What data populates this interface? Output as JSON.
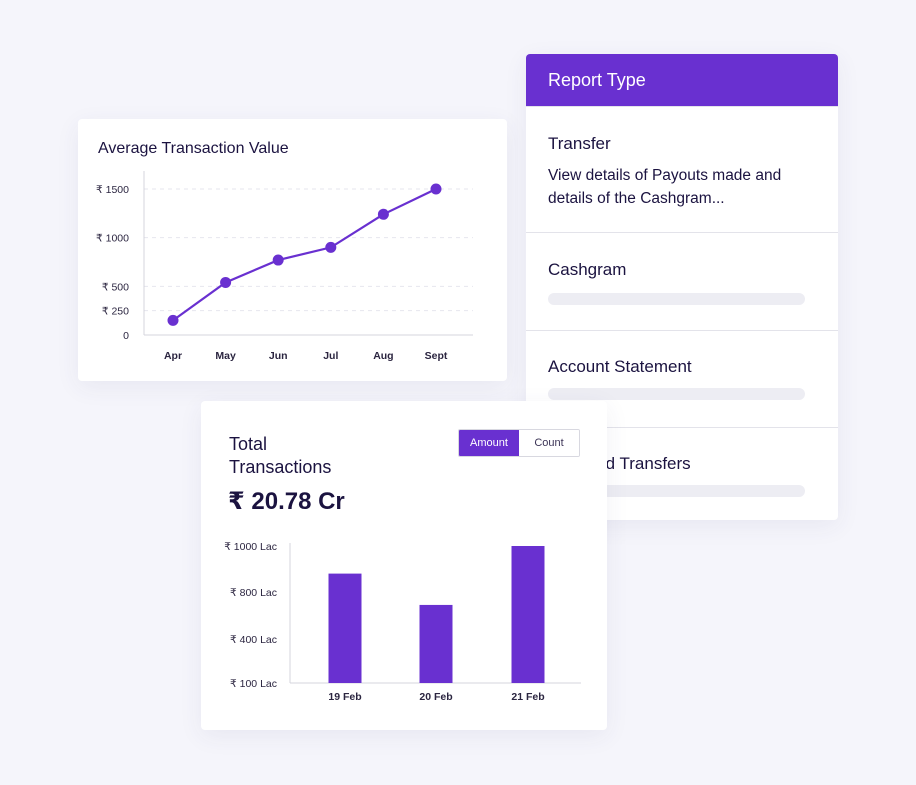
{
  "report_panel": {
    "header": "Report Type",
    "items": [
      {
        "title": "Transfer",
        "description": "View details of Payouts made and details of the Cashgram..."
      },
      {
        "title": "Cashgram"
      },
      {
        "title": "Account Statement"
      },
      {
        "title": "Rejected Transfers"
      }
    ]
  },
  "avg_chart": {
    "title": "Average Transaction Value"
  },
  "total_card": {
    "title": "Total Transactions",
    "amount": "₹ 20.78 Cr",
    "toggle": {
      "amount_label": "Amount",
      "count_label": "Count",
      "selected": "Amount"
    }
  },
  "colors": {
    "accent": "#6930d0"
  },
  "chart_data": [
    {
      "type": "line",
      "title": "Average Transaction Value",
      "categories": [
        "Apr",
        "May",
        "Jun",
        "Jul",
        "Aug",
        "Sept"
      ],
      "values": [
        150,
        540,
        770,
        900,
        1240,
        1500
      ],
      "y_ticks": [
        {
          "value": 0,
          "label": "0"
        },
        {
          "value": 250,
          "label": "₹ 250"
        },
        {
          "value": 500,
          "label": "₹ 500"
        },
        {
          "value": 1000,
          "label": "₹ 1000"
        },
        {
          "value": 1500,
          "label": "₹ 1500"
        }
      ],
      "ylim": [
        0,
        1500
      ],
      "grid": true
    },
    {
      "type": "bar",
      "title": "Total Transactions",
      "categories": [
        "19 Feb",
        "20 Feb",
        "21 Feb"
      ],
      "values": [
        880,
        690,
        1000
      ],
      "y_ticks": [
        {
          "value": 100,
          "label": "₹ 100 Lac"
        },
        {
          "value": 400,
          "label": "₹ 400 Lac"
        },
        {
          "value": 800,
          "label": "₹ 800 Lac"
        },
        {
          "value": 1000,
          "label": "₹ 1000 Lac"
        }
      ],
      "unit": "Lac",
      "grid": false
    }
  ]
}
